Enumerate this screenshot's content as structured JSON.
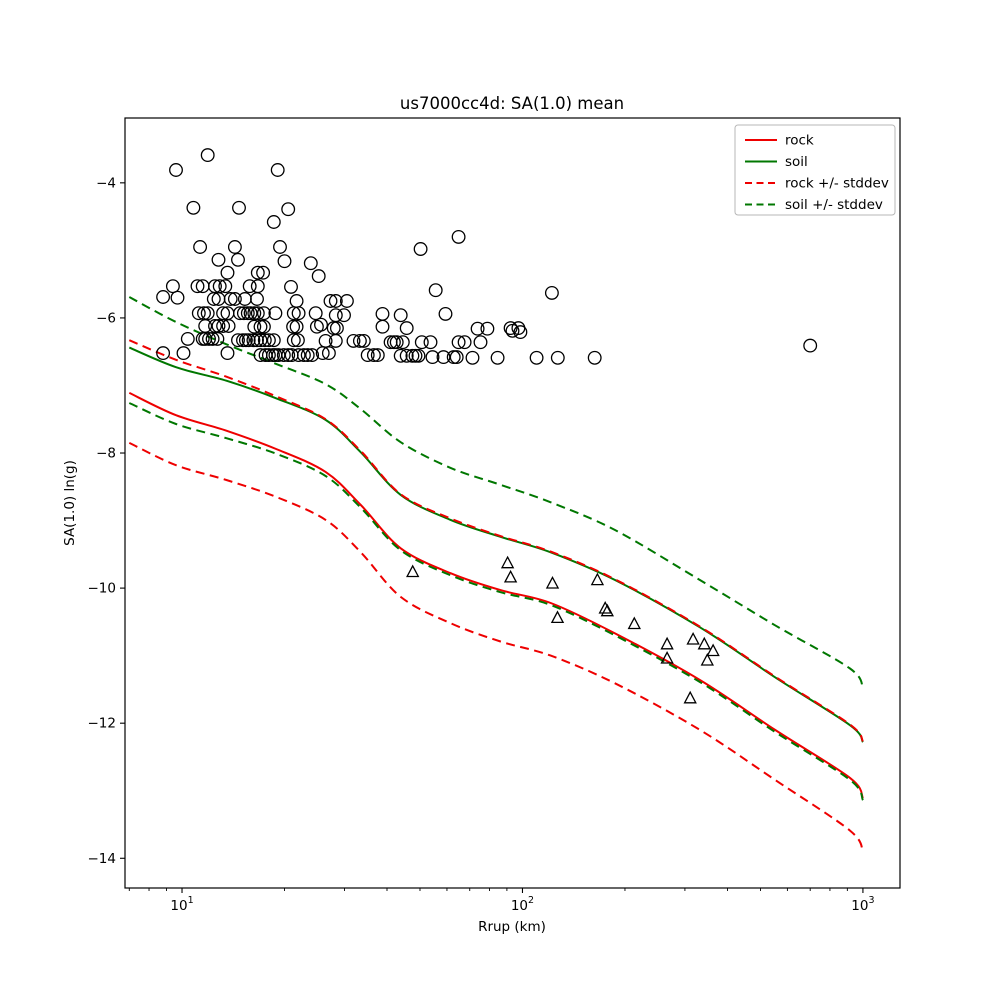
{
  "chart_data": {
    "type": "line",
    "title": "us7000cc4d: SA(1.0) mean",
    "xlabel": "Rrup (km)",
    "ylabel": "SA(1.0) ln(g)",
    "x_scale": "log",
    "xlim": [
      6.8,
      1285
    ],
    "ylim": [
      -14.44,
      -3.04
    ],
    "grid": false,
    "x_ticks": [
      {
        "value": 10,
        "base": "10",
        "exp": "1"
      },
      {
        "value": 100,
        "base": "10",
        "exp": "2"
      },
      {
        "value": 1000,
        "base": "10",
        "exp": "3"
      }
    ],
    "y_ticks": [
      {
        "value": -4,
        "label": "−4"
      },
      {
        "value": -6,
        "label": "−6"
      },
      {
        "value": -8,
        "label": "−8"
      },
      {
        "value": -10,
        "label": "−10"
      },
      {
        "value": -12,
        "label": "−12"
      },
      {
        "value": -14,
        "label": "−14"
      }
    ],
    "colors": {
      "rock": "#ee0000",
      "soil": "#007700",
      "marker": "#000000"
    },
    "x": [
      7.0,
      9.6,
      13.5,
      18.9,
      26.4,
      33.5,
      43.9,
      61.5,
      86.2,
      121,
      187,
      332,
      552,
      916,
      1000
    ],
    "series": [
      {
        "name": "rock",
        "color": "#ee0000",
        "style": "solid",
        "values": [
          -7.11,
          -7.44,
          -7.67,
          -7.94,
          -8.28,
          -8.77,
          -9.41,
          -9.78,
          -10.03,
          -10.22,
          -10.67,
          -11.36,
          -12.1,
          -12.81,
          -13.11
        ]
      },
      {
        "name": "soil",
        "color": "#007700",
        "style": "solid",
        "values": [
          -6.44,
          -6.73,
          -6.93,
          -7.19,
          -7.51,
          -7.99,
          -8.62,
          -8.99,
          -9.24,
          -9.47,
          -9.88,
          -10.58,
          -11.32,
          -12.03,
          -12.28
        ]
      },
      {
        "name": "rock + stddev",
        "color": "#ee0000",
        "style": "dashed",
        "values": [
          -6.33,
          -6.62,
          -6.87,
          -7.16,
          -7.5,
          -7.97,
          -8.61,
          -8.97,
          -9.23,
          -9.46,
          -9.87,
          -10.57,
          -11.31,
          -12.02,
          -12.27
        ]
      },
      {
        "name": "rock - stddev",
        "color": "#ee0000",
        "style": "dashed",
        "values": [
          -7.85,
          -8.18,
          -8.4,
          -8.65,
          -8.99,
          -9.47,
          -10.13,
          -10.52,
          -10.79,
          -11.0,
          -11.41,
          -12.1,
          -12.84,
          -13.59,
          -13.91
        ]
      },
      {
        "name": "soil + stddev",
        "color": "#007700",
        "style": "dashed",
        "values": [
          -5.69,
          -6.06,
          -6.39,
          -6.68,
          -6.98,
          -7.35,
          -7.84,
          -8.22,
          -8.47,
          -8.73,
          -9.14,
          -9.88,
          -10.55,
          -11.19,
          -11.48
        ]
      },
      {
        "name": "soil - stddev",
        "color": "#007700",
        "style": "dashed",
        "values": [
          -7.26,
          -7.57,
          -7.78,
          -8.01,
          -8.34,
          -8.81,
          -9.44,
          -9.81,
          -10.06,
          -10.25,
          -10.7,
          -11.39,
          -12.13,
          -12.84,
          -13.14
        ]
      }
    ],
    "scatter": {
      "circles_name": "station observations (circles)",
      "circles": [
        [
          11.9,
          -3.59
        ],
        [
          9.6,
          -3.81
        ],
        [
          19.1,
          -3.81
        ],
        [
          10.8,
          -4.37
        ],
        [
          14.7,
          -4.37
        ],
        [
          20.5,
          -4.39
        ],
        [
          18.6,
          -4.58
        ],
        [
          11.3,
          -4.95
        ],
        [
          14.3,
          -4.95
        ],
        [
          19.4,
          -4.95
        ],
        [
          12.8,
          -5.14
        ],
        [
          14.6,
          -5.14
        ],
        [
          20.0,
          -5.16
        ],
        [
          23.9,
          -5.19
        ],
        [
          13.6,
          -5.33
        ],
        [
          16.7,
          -5.33
        ],
        [
          17.3,
          -5.33
        ],
        [
          25.2,
          -5.38
        ],
        [
          9.4,
          -5.53
        ],
        [
          11.1,
          -5.53
        ],
        [
          11.5,
          -5.53
        ],
        [
          12.5,
          -5.53
        ],
        [
          12.9,
          -5.53
        ],
        [
          13.4,
          -5.53
        ],
        [
          15.8,
          -5.53
        ],
        [
          16.7,
          -5.53
        ],
        [
          20.9,
          -5.54
        ],
        [
          9.7,
          -5.7
        ],
        [
          8.8,
          -5.69
        ],
        [
          12.4,
          -5.72
        ],
        [
          12.8,
          -5.72
        ],
        [
          13.9,
          -5.72
        ],
        [
          14.3,
          -5.72
        ],
        [
          15.3,
          -5.72
        ],
        [
          16.6,
          -5.72
        ],
        [
          21.7,
          -5.75
        ],
        [
          11.2,
          -5.93
        ],
        [
          11.6,
          -5.93
        ],
        [
          11.9,
          -5.93
        ],
        [
          13.2,
          -5.93
        ],
        [
          13.6,
          -5.93
        ],
        [
          14.8,
          -5.93
        ],
        [
          15.2,
          -5.93
        ],
        [
          15.6,
          -5.93
        ],
        [
          15.9,
          -5.93
        ],
        [
          16.3,
          -5.93
        ],
        [
          16.7,
          -5.93
        ],
        [
          17.4,
          -5.93
        ],
        [
          18.8,
          -5.93
        ],
        [
          21.3,
          -5.93
        ],
        [
          22.0,
          -5.93
        ],
        [
          24.7,
          -5.93
        ],
        [
          11.7,
          -6.12
        ],
        [
          12.5,
          -6.12
        ],
        [
          12.8,
          -6.12
        ],
        [
          13.2,
          -6.12
        ],
        [
          13.7,
          -6.12
        ],
        [
          16.3,
          -6.13
        ],
        [
          17.0,
          -6.13
        ],
        [
          17.4,
          -6.13
        ],
        [
          21.2,
          -6.13
        ],
        [
          21.7,
          -6.13
        ],
        [
          24.9,
          -6.13
        ],
        [
          10.4,
          -6.31
        ],
        [
          11.5,
          -6.31
        ],
        [
          11.7,
          -6.31
        ],
        [
          12.0,
          -6.31
        ],
        [
          12.3,
          -6.31
        ],
        [
          12.7,
          -6.31
        ],
        [
          14.6,
          -6.33
        ],
        [
          15.1,
          -6.33
        ],
        [
          15.4,
          -6.33
        ],
        [
          15.7,
          -6.33
        ],
        [
          16.2,
          -6.33
        ],
        [
          16.6,
          -6.33
        ],
        [
          17.0,
          -6.33
        ],
        [
          17.5,
          -6.33
        ],
        [
          18.0,
          -6.33
        ],
        [
          18.6,
          -6.33
        ],
        [
          21.3,
          -6.33
        ],
        [
          21.9,
          -6.33
        ],
        [
          8.8,
          -6.52
        ],
        [
          10.1,
          -6.52
        ],
        [
          13.6,
          -6.52
        ],
        [
          17.0,
          -6.55
        ],
        [
          17.6,
          -6.55
        ],
        [
          18.0,
          -6.55
        ],
        [
          18.5,
          -6.55
        ],
        [
          18.8,
          -6.55
        ],
        [
          19.2,
          -6.55
        ],
        [
          19.9,
          -6.55
        ],
        [
          20.5,
          -6.55
        ],
        [
          21.0,
          -6.55
        ],
        [
          22.0,
          -6.55
        ],
        [
          22.8,
          -6.55
        ],
        [
          23.4,
          -6.55
        ],
        [
          24.1,
          -6.55
        ],
        [
          64.9,
          -4.8
        ],
        [
          50.2,
          -4.98
        ],
        [
          55.6,
          -5.59
        ],
        [
          27.3,
          -5.75
        ],
        [
          28.3,
          -5.75
        ],
        [
          30.5,
          -5.75
        ],
        [
          28.3,
          -5.96
        ],
        [
          29.9,
          -5.96
        ],
        [
          38.8,
          -5.94
        ],
        [
          43.9,
          -5.96
        ],
        [
          59.4,
          -5.94
        ],
        [
          25.6,
          -6.1
        ],
        [
          27.9,
          -6.15
        ],
        [
          28.5,
          -6.15
        ],
        [
          38.8,
          -6.13
        ],
        [
          45.7,
          -6.15
        ],
        [
          73.8,
          -6.16
        ],
        [
          78.9,
          -6.16
        ],
        [
          92.3,
          -6.15
        ],
        [
          97.3,
          -6.15
        ],
        [
          26.4,
          -6.34
        ],
        [
          28.3,
          -6.34
        ],
        [
          31.9,
          -6.34
        ],
        [
          33.3,
          -6.34
        ],
        [
          34.2,
          -6.34
        ],
        [
          41.0,
          -6.36
        ],
        [
          41.9,
          -6.36
        ],
        [
          42.7,
          -6.36
        ],
        [
          44.5,
          -6.36
        ],
        [
          50.6,
          -6.36
        ],
        [
          53.7,
          -6.36
        ],
        [
          64.9,
          -6.36
        ],
        [
          67.6,
          -6.36
        ],
        [
          75.3,
          -6.36
        ],
        [
          25.9,
          -6.52
        ],
        [
          27.0,
          -6.52
        ],
        [
          35.1,
          -6.55
        ],
        [
          36.6,
          -6.55
        ],
        [
          37.6,
          -6.55
        ],
        [
          43.9,
          -6.56
        ],
        [
          45.7,
          -6.56
        ],
        [
          47.5,
          -6.56
        ],
        [
          48.5,
          -6.56
        ],
        [
          49.5,
          -6.56
        ],
        [
          54.4,
          -6.58
        ],
        [
          58.6,
          -6.58
        ],
        [
          62.8,
          -6.58
        ],
        [
          64.1,
          -6.58
        ],
        [
          71.3,
          -6.59
        ],
        [
          84.5,
          -6.59
        ],
        [
          122,
          -5.63
        ],
        [
          93.5,
          -6.19
        ],
        [
          98.6,
          -6.21
        ],
        [
          110,
          -6.59
        ],
        [
          127,
          -6.59
        ],
        [
          163,
          -6.59
        ],
        [
          700,
          -6.41
        ]
      ],
      "triangles_name": "station observations (triangles)",
      "triangles": [
        [
          47.6,
          -9.76
        ],
        [
          90.4,
          -9.63
        ],
        [
          92.3,
          -9.84
        ],
        [
          122.5,
          -9.93
        ],
        [
          126.7,
          -10.44
        ],
        [
          166,
          -9.88
        ],
        [
          175,
          -10.3
        ],
        [
          177.5,
          -10.34
        ],
        [
          213,
          -10.53
        ],
        [
          266,
          -10.83
        ],
        [
          266,
          -11.04
        ],
        [
          317,
          -10.76
        ],
        [
          342,
          -10.83
        ],
        [
          363,
          -10.93
        ],
        [
          349,
          -11.07
        ],
        [
          311,
          -11.63
        ]
      ]
    },
    "legend": {
      "position": "upper right",
      "entries": [
        {
          "label": "rock",
          "color": "#ee0000",
          "dashed": false
        },
        {
          "label": "soil",
          "color": "#007700",
          "dashed": false
        },
        {
          "label": "rock +/- stddev",
          "color": "#ee0000",
          "dashed": true
        },
        {
          "label": "soil +/- stddev",
          "color": "#007700",
          "dashed": true
        }
      ]
    }
  }
}
